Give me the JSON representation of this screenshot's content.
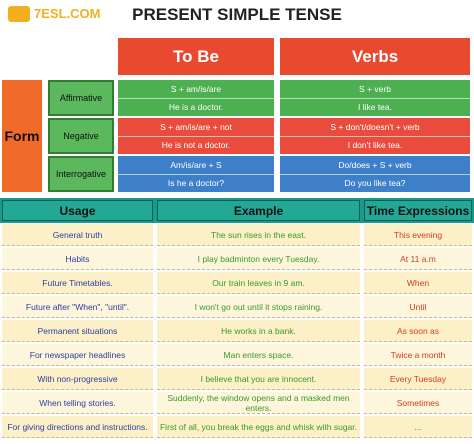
{
  "header": {
    "logo": "7ESL.COM",
    "title": "PRESENT SIMPLE TENSE"
  },
  "form_table": {
    "label": "Form",
    "columns": [
      "To Be",
      "Verbs"
    ],
    "rows": [
      {
        "label": "Affirmative",
        "cells": [
          [
            "S + am/is/are",
            "He is a doctor."
          ],
          [
            "S + verb",
            "I like tea."
          ]
        ]
      },
      {
        "label": "Negative",
        "cells": [
          [
            "S + am/is/are + not",
            "He is not a doctor."
          ],
          [
            "S + don't/doesn't + verb",
            "I don't like tea."
          ]
        ]
      },
      {
        "label": "Interrogative",
        "cells": [
          [
            "Am/is/are + S",
            "Is he a doctor?"
          ],
          [
            "Do/does + S + verb",
            "Do you like tea?"
          ]
        ]
      }
    ]
  },
  "usage_table": {
    "columns": [
      "Usage",
      "Example",
      "Time Expressions"
    ],
    "rows": [
      [
        "General truth",
        "The sun rises in the east.",
        "This evening"
      ],
      [
        "Habits",
        "I play badminton every Tuesday.",
        "At 11 a.m"
      ],
      [
        "Future Timetables.",
        "Our train leaves in 9 am.",
        "When"
      ],
      [
        "Future after \"When\", \"until\".",
        "I won't go out until it stops raining.",
        "Until"
      ],
      [
        "Permanent situations",
        "He works in a bank.",
        "As soon as"
      ],
      [
        "For newspaper headlines",
        "Man enters space.",
        "Twice a month"
      ],
      [
        "With non-progressive",
        "I believe that you are innocent.",
        "Every Tuesday"
      ],
      [
        "When telling stories.",
        "Suddenly, the window opens and a masked men enters.",
        "Sometimes"
      ],
      [
        "For giving directions and instructions.",
        "First of all, you break the eggs and whisk with sugar.",
        "..."
      ]
    ]
  }
}
